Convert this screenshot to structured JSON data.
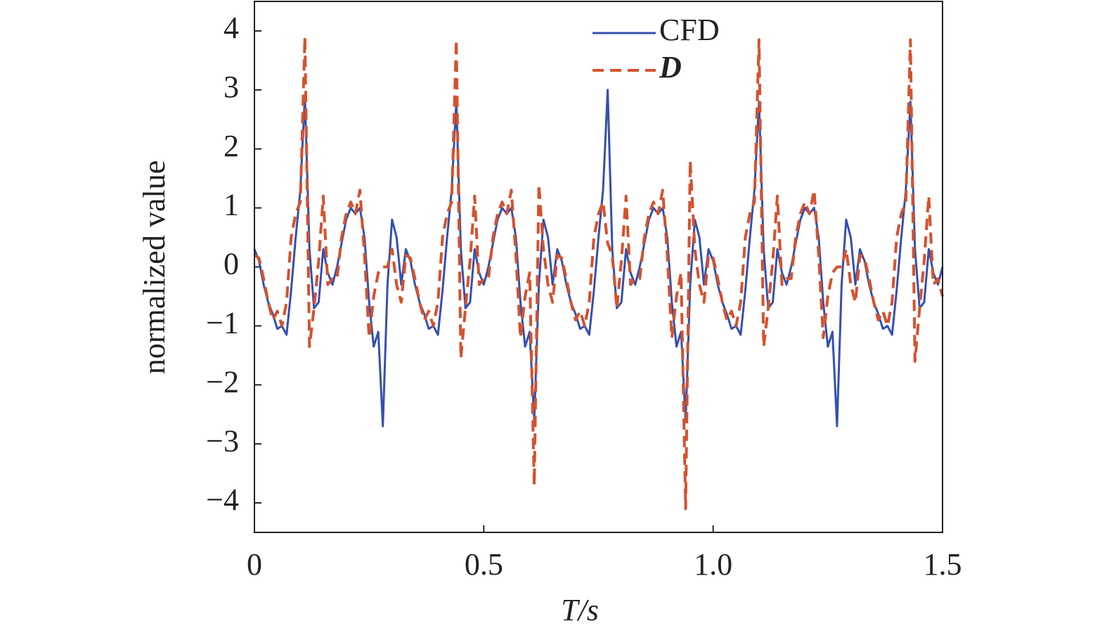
{
  "chart_data": {
    "type": "line",
    "xlabel": "T/s",
    "ylabel": "normalized value",
    "xlim": [
      0,
      1.5
    ],
    "ylim": [
      -4.5,
      4.5
    ],
    "xticks": [
      0,
      0.5,
      {
        "value": 1,
        "label": "1.0"
      },
      1.5
    ],
    "yticks": [
      {
        "value": -4,
        "label": "−4"
      },
      {
        "value": -3,
        "label": "−3"
      },
      {
        "value": -2,
        "label": "−2"
      },
      {
        "value": -1,
        "label": "−1"
      },
      0,
      1,
      2,
      3,
      4
    ],
    "legend": "top",
    "x": [
      0,
      0.01,
      0.02,
      0.03,
      0.04,
      0.05,
      0.06,
      0.07,
      0.08,
      0.09,
      0.1,
      0.11,
      0.12,
      0.13,
      0.14,
      0.15,
      0.16,
      0.17,
      0.18,
      0.19,
      0.2,
      0.21,
      0.22,
      0.23,
      0.24,
      0.25,
      0.26,
      0.27,
      0.28,
      0.29,
      0.3,
      0.31,
      0.32,
      0.33,
      0.34,
      0.35,
      0.36,
      0.37,
      0.38,
      0.39,
      0.4,
      0.41,
      0.42,
      0.43,
      0.44,
      0.45,
      0.46,
      0.47,
      0.48,
      0.49,
      0.5,
      0.51,
      0.52,
      0.53,
      0.54,
      0.55,
      0.56,
      0.57,
      0.58,
      0.59,
      0.6,
      0.61,
      0.62,
      0.63,
      0.64,
      0.65,
      0.66,
      0.67,
      0.68,
      0.69,
      0.7,
      0.71,
      0.72,
      0.73,
      0.74,
      0.75,
      0.76,
      0.77,
      0.78,
      0.79,
      0.8,
      0.81,
      0.82,
      0.83,
      0.84,
      0.85,
      0.86,
      0.87,
      0.88,
      0.89,
      0.9,
      0.91,
      0.92,
      0.93,
      0.94,
      0.95,
      0.96,
      0.97,
      0.98,
      0.99,
      1,
      1.01,
      1.02,
      1.03,
      1.04,
      1.05,
      1.06,
      1.07,
      1.08,
      1.09,
      1.1,
      1.11,
      1.12,
      1.13,
      1.14,
      1.15,
      1.16,
      1.17,
      1.18,
      1.19,
      1.2,
      1.21,
      1.22,
      1.23,
      1.24,
      1.25,
      1.26,
      1.27,
      1.28,
      1.29,
      1.3,
      1.31,
      1.32,
      1.33,
      1.34,
      1.35,
      1.36,
      1.37,
      1.38,
      1.39,
      1.4,
      1.41,
      1.42,
      1.43,
      1.44,
      1.45,
      1.46,
      1.47,
      1.48,
      1.49,
      1.5
    ],
    "series": [
      {
        "name": "CFD",
        "color": "#3550b0",
        "dashed": false,
        "values": [
          0.3,
          0.1,
          -0.3,
          -0.6,
          -0.8,
          -1.05,
          -1.0,
          -1.15,
          -0.4,
          0.5,
          1.3,
          2.9,
          0.3,
          -0.7,
          -0.6,
          0.3,
          -0.1,
          -0.3,
          0.0,
          0.4,
          0.8,
          1.0,
          0.9,
          1.0,
          0.5,
          -0.6,
          -1.35,
          -1.1,
          -2.7,
          -0.3,
          0.8,
          0.5,
          -0.3,
          0.3,
          0.1,
          -0.3,
          -0.6,
          -0.8,
          -1.05,
          -1.0,
          -1.15,
          -0.4,
          0.5,
          1.3,
          2.8,
          0.3,
          -0.7,
          -0.6,
          0.3,
          -0.1,
          -0.3,
          0.0,
          0.4,
          0.8,
          1.0,
          0.9,
          1.0,
          0.5,
          -0.6,
          -1.35,
          -1.1,
          -2.6,
          -0.3,
          0.8,
          0.5,
          -0.3,
          0.3,
          0.1,
          -0.3,
          -0.6,
          -0.8,
          -1.05,
          -1.0,
          -1.15,
          -0.4,
          0.5,
          1.3,
          3.0,
          0.3,
          -0.7,
          -0.6,
          0.3,
          -0.1,
          -0.3,
          0.0,
          0.4,
          0.8,
          1.0,
          0.9,
          1.0,
          0.5,
          -0.6,
          -1.35,
          -1.1,
          -2.6,
          -0.3,
          0.8,
          0.5,
          -0.3,
          0.3,
          0.1,
          -0.3,
          -0.6,
          -0.8,
          -1.05,
          -1.0,
          -1.15,
          -0.4,
          0.5,
          1.3,
          2.8,
          0.3,
          -0.7,
          -0.6,
          0.3,
          -0.1,
          -0.3,
          0.0,
          0.4,
          0.8,
          1.0,
          0.9,
          1.0,
          0.5,
          -0.6,
          -1.35,
          -1.1,
          -2.7,
          -0.3,
          0.8,
          0.5,
          -0.3,
          0.3,
          0.1,
          -0.3,
          -0.6,
          -0.8,
          -1.05,
          -1.0,
          -1.15,
          -0.4,
          0.5,
          1.3,
          2.8,
          0.3,
          -0.7,
          -0.6,
          0.3,
          -0.1,
          -0.3,
          0.0
        ]
      },
      {
        "name": "D",
        "color": "#d4522e",
        "dashed": true,
        "values": [
          0.2,
          0.15,
          -0.2,
          -0.6,
          -0.9,
          -0.75,
          -1.0,
          -0.6,
          0.5,
          0.9,
          1.1,
          3.9,
          -1.35,
          -0.7,
          0.1,
          1.2,
          -0.3,
          -0.2,
          -0.2,
          0.5,
          0.9,
          1.1,
          0.9,
          1.3,
          0.2,
          -1.2,
          -0.5,
          -0.1,
          0.0,
          0.0,
          0.3,
          -0.3,
          -0.6,
          0.2,
          0.15,
          -0.2,
          -0.6,
          -0.9,
          -0.75,
          -1.0,
          -0.6,
          0.5,
          0.9,
          1.1,
          3.85,
          -1.55,
          -0.7,
          0.1,
          1.2,
          -0.3,
          -0.2,
          -0.2,
          0.5,
          0.9,
          1.1,
          0.9,
          1.3,
          0.2,
          -1.2,
          -0.5,
          -0.1,
          -3.7,
          1.4,
          0.3,
          -0.3,
          -0.6,
          0.2,
          0.15,
          -0.2,
          -0.6,
          -0.9,
          -0.75,
          -1.0,
          -0.6,
          0.5,
          0.9,
          1.1,
          0.4,
          0.2,
          -0.7,
          0.1,
          1.2,
          -0.3,
          -0.2,
          -0.2,
          0.5,
          0.9,
          1.1,
          0.9,
          1.3,
          0.2,
          -1.2,
          -0.5,
          -0.1,
          -4.1,
          1.8,
          0.3,
          -0.3,
          -0.6,
          0.2,
          0.15,
          -0.2,
          -0.6,
          -0.9,
          -0.75,
          -1.0,
          -0.6,
          0.5,
          0.9,
          1.1,
          3.85,
          -1.35,
          -0.7,
          0.1,
          1.2,
          -0.3,
          -0.2,
          -0.2,
          0.5,
          0.9,
          1.1,
          0.9,
          1.3,
          0.2,
          -1.2,
          -0.5,
          -0.1,
          0.0,
          0.0,
          0.3,
          -0.3,
          -0.6,
          0.2,
          0.15,
          -0.2,
          -0.6,
          -0.9,
          -0.75,
          -1.0,
          -0.6,
          0.5,
          0.9,
          1.1,
          3.85,
          -1.6,
          -0.7,
          0.1,
          1.2,
          -0.3,
          -0.2,
          -0.5
        ]
      }
    ]
  }
}
